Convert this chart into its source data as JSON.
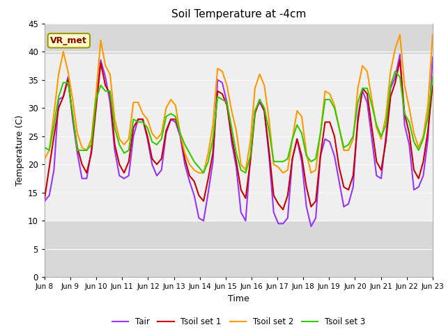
{
  "title": "Soil Temperature at -4cm",
  "xlabel": "Time",
  "ylabel": "Temperature (C)",
  "ylim": [
    0,
    45
  ],
  "yticks": [
    0,
    5,
    10,
    15,
    20,
    25,
    30,
    35,
    40,
    45
  ],
  "background_color": "#ffffff",
  "plot_bg_color": "#d8d8d8",
  "white_band": [
    10.0,
    39.5
  ],
  "annotation_text": "VR_met",
  "annotation_bg": "#ffffcc",
  "annotation_border": "#999900",
  "annotation_text_color": "#880000",
  "colors": {
    "Tair": "#9933ff",
    "Tsoil set 1": "#cc0000",
    "Tsoil set 2": "#ff9900",
    "Tsoil set 3": "#33cc00"
  },
  "linewidths": {
    "Tair": 1.5,
    "Tsoil set 1": 1.5,
    "Tsoil set 2": 1.5,
    "Tsoil set 3": 1.5
  },
  "xtick_labels": [
    "Jun 8",
    "Jun 9",
    "Jun 10",
    "Jun 11",
    "Jun 12",
    "Jun 13",
    "Jun 14",
    "Jun 15",
    "Jun 16",
    "Jun 17",
    "Jun 18",
    "Jun 19",
    "Jun 20",
    "Jun 21",
    "Jun 22",
    "Jun 23"
  ],
  "Tair": [
    13.5,
    14.5,
    19.0,
    31.5,
    32.0,
    35.5,
    28.0,
    22.0,
    17.5,
    17.5,
    22.5,
    31.5,
    38.5,
    35.5,
    31.0,
    22.5,
    18.0,
    17.5,
    18.0,
    25.0,
    28.0,
    28.0,
    24.5,
    20.0,
    18.0,
    19.0,
    25.5,
    28.0,
    27.5,
    25.0,
    20.0,
    17.0,
    14.5,
    10.5,
    10.0,
    15.0,
    20.5,
    35.0,
    34.5,
    31.0,
    24.0,
    19.5,
    11.5,
    10.0,
    21.0,
    29.5,
    31.0,
    29.5,
    21.5,
    11.5,
    9.5,
    9.5,
    10.5,
    21.0,
    24.5,
    20.5,
    12.5,
    9.0,
    10.5,
    21.5,
    24.5,
    24.0,
    21.5,
    17.0,
    12.5,
    13.0,
    16.0,
    28.5,
    33.0,
    31.0,
    24.5,
    18.0,
    17.5,
    25.0,
    33.5,
    35.5,
    39.5,
    27.0,
    23.5,
    15.5,
    16.0,
    18.0,
    24.5,
    39.0
  ],
  "Tsoil1": [
    14.0,
    19.5,
    25.0,
    30.0,
    32.0,
    35.0,
    28.5,
    23.0,
    20.0,
    18.5,
    22.0,
    30.0,
    38.0,
    34.0,
    32.5,
    23.5,
    20.0,
    18.5,
    20.5,
    26.5,
    28.0,
    28.0,
    25.0,
    21.0,
    20.0,
    21.0,
    26.0,
    28.0,
    28.0,
    25.5,
    21.0,
    18.0,
    17.0,
    14.5,
    13.5,
    17.5,
    22.0,
    33.0,
    32.5,
    30.5,
    25.0,
    20.5,
    15.5,
    14.0,
    20.5,
    29.0,
    31.5,
    29.5,
    22.5,
    14.5,
    13.0,
    12.0,
    14.5,
    21.0,
    24.5,
    21.5,
    16.0,
    12.5,
    13.5,
    21.5,
    27.5,
    27.5,
    25.0,
    19.5,
    16.0,
    15.5,
    18.0,
    27.5,
    33.5,
    32.5,
    26.5,
    20.5,
    19.0,
    24.0,
    32.0,
    34.5,
    38.5,
    29.0,
    25.5,
    19.0,
    17.5,
    20.5,
    26.0,
    34.0
  ],
  "Tsoil2": [
    21.0,
    22.5,
    29.0,
    36.0,
    40.0,
    36.5,
    31.5,
    25.5,
    23.0,
    22.5,
    24.5,
    32.5,
    42.0,
    37.5,
    36.0,
    28.0,
    24.5,
    23.5,
    24.5,
    31.0,
    31.0,
    29.0,
    28.0,
    25.5,
    24.5,
    25.5,
    30.0,
    31.5,
    30.5,
    25.5,
    22.0,
    20.0,
    19.0,
    18.5,
    18.5,
    22.0,
    27.0,
    37.0,
    36.5,
    34.0,
    29.5,
    26.0,
    20.0,
    19.0,
    24.0,
    33.5,
    36.0,
    34.0,
    28.0,
    20.0,
    19.5,
    18.5,
    19.0,
    24.5,
    29.5,
    28.5,
    22.0,
    18.5,
    19.0,
    25.5,
    33.0,
    32.5,
    30.5,
    26.5,
    22.5,
    22.5,
    24.5,
    33.5,
    37.5,
    36.5,
    31.5,
    26.5,
    24.5,
    28.5,
    36.5,
    40.5,
    43.0,
    34.0,
    30.0,
    25.5,
    23.0,
    25.0,
    30.5,
    43.0
  ],
  "Tsoil3": [
    23.0,
    22.5,
    27.0,
    32.0,
    34.5,
    34.5,
    29.0,
    22.5,
    22.5,
    22.5,
    23.5,
    31.5,
    34.0,
    33.0,
    33.0,
    26.5,
    23.5,
    22.0,
    22.5,
    28.0,
    27.5,
    27.5,
    26.5,
    24.0,
    23.5,
    24.5,
    28.5,
    29.0,
    28.5,
    25.5,
    23.5,
    22.0,
    20.5,
    19.5,
    18.5,
    20.5,
    24.5,
    32.0,
    31.5,
    31.0,
    26.5,
    22.0,
    19.0,
    18.5,
    21.5,
    29.5,
    31.5,
    30.0,
    26.0,
    20.5,
    20.5,
    20.5,
    21.0,
    24.5,
    27.0,
    25.5,
    21.5,
    20.5,
    21.0,
    25.5,
    31.5,
    31.5,
    30.0,
    26.5,
    23.0,
    23.5,
    25.0,
    31.0,
    33.5,
    33.5,
    30.5,
    27.0,
    25.0,
    27.0,
    34.0,
    36.5,
    35.5,
    29.0,
    27.5,
    24.0,
    22.5,
    24.5,
    28.5,
    35.5
  ]
}
